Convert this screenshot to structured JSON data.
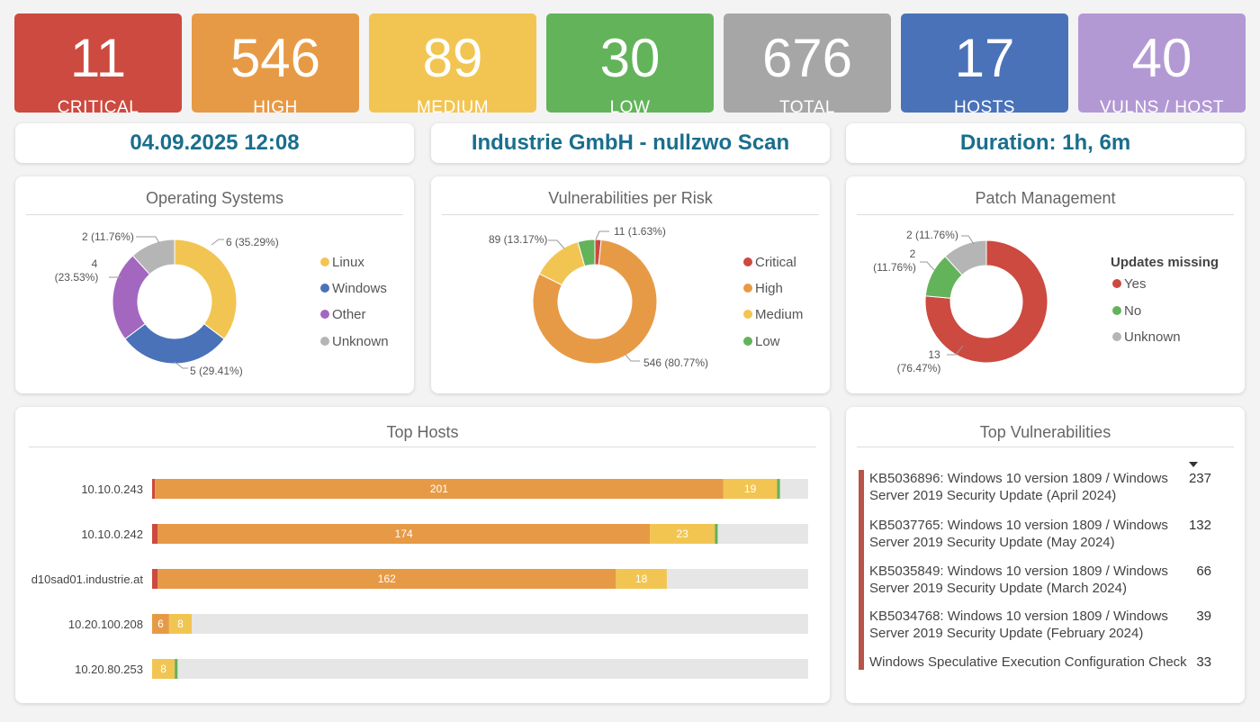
{
  "tiles": [
    {
      "value": "11",
      "label": "CRITICAL",
      "color": "#cc4a3f"
    },
    {
      "value": "546",
      "label": "HIGH",
      "color": "#e79a45"
    },
    {
      "value": "89",
      "label": "MEDIUM",
      "color": "#f2c552"
    },
    {
      "value": "30",
      "label": "LOW",
      "color": "#63b35a"
    },
    {
      "value": "676",
      "label": "TOTAL",
      "color": "#a6a6a6"
    },
    {
      "value": "17",
      "label": "HOSTS",
      "color": "#4a72b8"
    },
    {
      "value": "40",
      "label": "VULNS / HOST",
      "color": "#b399d4"
    }
  ],
  "headers": {
    "date": "04.09.2025 12:08",
    "scan": "Industrie GmbH - nullzwo Scan",
    "duration": "Duration: 1h, 6m"
  },
  "chart_data": [
    {
      "type": "pie",
      "title": "Operating Systems",
      "slices": [
        {
          "name": "Linux",
          "value": 6,
          "label": "6 (35.29%)",
          "color": "#f2c552"
        },
        {
          "name": "Windows",
          "value": 5,
          "label": "5 (29.41%)",
          "color": "#4a72b8"
        },
        {
          "name": "Other",
          "value": 4,
          "label": "4 (23.53%)",
          "color": "#a367c0"
        },
        {
          "name": "Unknown",
          "value": 2,
          "label": "2 (11.76%)",
          "color": "#b5b5b5"
        }
      ]
    },
    {
      "type": "pie",
      "title": "Vulnerabilities per Risk",
      "slices": [
        {
          "name": "Critical",
          "value": 11,
          "label": "11 (1.63%)",
          "color": "#cc4a3f"
        },
        {
          "name": "High",
          "value": 546,
          "label": "546 (80.77%)",
          "color": "#e79a45"
        },
        {
          "name": "Medium",
          "value": 89,
          "label": "89 (13.17%)",
          "color": "#f2c552"
        },
        {
          "name": "Low",
          "value": 30,
          "label": "",
          "color": "#63b35a"
        }
      ]
    },
    {
      "type": "pie",
      "title": "Patch Management",
      "legend_title": "Updates missing",
      "slices": [
        {
          "name": "Yes",
          "value": 13,
          "label": "13 (76.47%)",
          "color": "#cc4a3f"
        },
        {
          "name": "No",
          "value": 2,
          "label": "2 (11.76%)",
          "color": "#63b35a"
        },
        {
          "name": "Unknown",
          "value": 2,
          "label": "2 (11.76%)",
          "color": "#b5b5b5"
        }
      ]
    },
    {
      "type": "bar",
      "title": "Top Hosts",
      "orientation": "horizontal",
      "stacked": true,
      "categories": [
        "10.10.0.243",
        "10.10.0.242",
        "d10sad01.industrie.at",
        "10.20.100.208",
        "10.20.80.253"
      ],
      "xlim": [
        0,
        232
      ],
      "series": [
        {
          "name": "Critical",
          "color": "#cc4a3f",
          "values": [
            1,
            2,
            2,
            0,
            0
          ]
        },
        {
          "name": "High",
          "color": "#e79a45",
          "values": [
            201,
            174,
            162,
            6,
            0
          ]
        },
        {
          "name": "Medium",
          "color": "#f2c552",
          "values": [
            19,
            23,
            18,
            8,
            8
          ]
        },
        {
          "name": "Low",
          "color": "#63b35a",
          "values": [
            1,
            1,
            0,
            0,
            1
          ]
        }
      ]
    }
  ],
  "top_vulns": {
    "title": "Top Vulnerabilities",
    "sort_icon": "sort-down-icon",
    "items": [
      {
        "text": "KB5036896: Windows 10 version 1809 / Windows Server 2019 Security Update (April 2024)",
        "count": "237"
      },
      {
        "text": "KB5037765: Windows 10 version 1809 / Windows Server 2019 Security Update (May 2024)",
        "count": "132"
      },
      {
        "text": "KB5035849: Windows 10 version 1809 / Windows Server 2019 Security Update (March 2024)",
        "count": "66"
      },
      {
        "text": "KB5034768: Windows 10 version 1809 / Windows Server 2019 Security Update (February 2024)",
        "count": "39"
      },
      {
        "text": "Windows Speculative Execution Configuration Check",
        "count": "33"
      }
    ]
  }
}
